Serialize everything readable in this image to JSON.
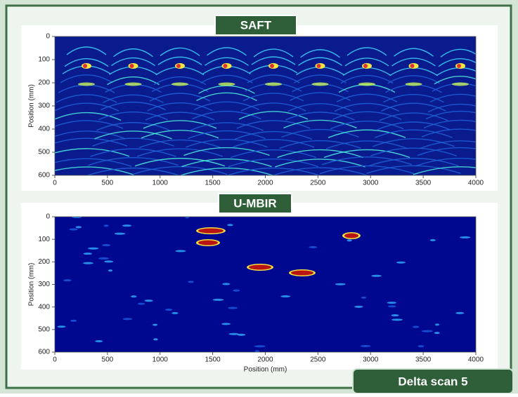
{
  "banner": "Delta scan 5",
  "chart_data": [
    {
      "type": "heatmap",
      "title": "SAFT",
      "ylabel": "Position (mm)",
      "xlim": [
        0,
        4000
      ],
      "xticks": [
        0,
        500,
        1000,
        1500,
        2000,
        2500,
        3000,
        3500,
        4000
      ],
      "ylim": [
        0,
        600
      ],
      "yticks": [
        0,
        100,
        200,
        300,
        400,
        500,
        600
      ],
      "y_inverted": true
    },
    {
      "type": "heatmap",
      "title": "U-MBIR",
      "ylabel": "Position (mm)",
      "xlabel": "Position (mm)",
      "xlim": [
        0,
        4000
      ],
      "xticks": [
        0,
        500,
        1000,
        1500,
        2000,
        2500,
        3000,
        3500,
        4000
      ],
      "ylim": [
        0,
        600
      ],
      "yticks": [
        0,
        100,
        200,
        300,
        400,
        500,
        600
      ],
      "y_inverted": true
    }
  ]
}
